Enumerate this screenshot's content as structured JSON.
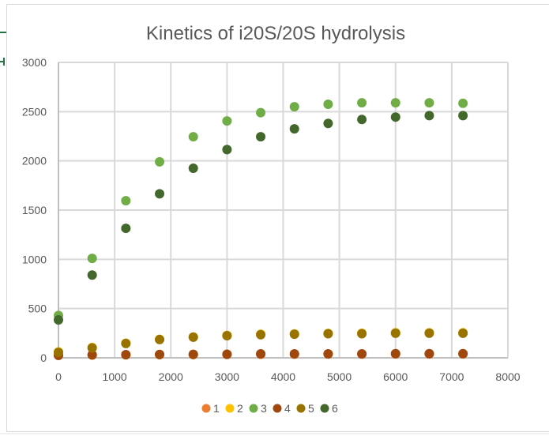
{
  "chart_data": {
    "type": "scatter",
    "title": "Kinetics of i20S/20S hydrolysis",
    "xlabel": "",
    "ylabel": "",
    "xlim": [
      0,
      8000
    ],
    "ylim": [
      0,
      3000
    ],
    "xticks": [
      0,
      1000,
      2000,
      3000,
      4000,
      5000,
      6000,
      7000,
      8000
    ],
    "yticks": [
      0,
      500,
      1000,
      1500,
      2000,
      2500,
      3000
    ],
    "grid": true,
    "legend_position": "bottom",
    "x": [
      0,
      600,
      1200,
      1800,
      2400,
      3000,
      3600,
      4200,
      4800,
      5400,
      6000,
      6600,
      7200
    ],
    "series": [
      {
        "name": "1",
        "color": "#ED7D31",
        "values": [
          25,
          28,
          30,
          32,
          33,
          34,
          36,
          37,
          38,
          38,
          39,
          39,
          40
        ]
      },
      {
        "name": "2",
        "color": "#FFC000",
        "values": [
          60,
          105,
          148,
          188,
          212,
          228,
          240,
          243,
          248,
          250,
          255,
          255,
          255
        ]
      },
      {
        "name": "3",
        "color": "#70AD47",
        "values": [
          430,
          1010,
          1595,
          1990,
          2245,
          2405,
          2490,
          2550,
          2575,
          2590,
          2590,
          2590,
          2585
        ]
      },
      {
        "name": "4",
        "color": "#9E480E",
        "values": [
          25,
          30,
          32,
          34,
          35,
          36,
          40,
          40,
          40,
          40,
          42,
          42,
          42
        ]
      },
      {
        "name": "5",
        "color": "#997300",
        "values": [
          55,
          100,
          145,
          185,
          210,
          225,
          235,
          240,
          245,
          245,
          250,
          250,
          250
        ]
      },
      {
        "name": "6",
        "color": "#43682B",
        "values": [
          385,
          840,
          1315,
          1665,
          1925,
          2115,
          2245,
          2325,
          2380,
          2420,
          2445,
          2460,
          2460
        ]
      }
    ]
  }
}
